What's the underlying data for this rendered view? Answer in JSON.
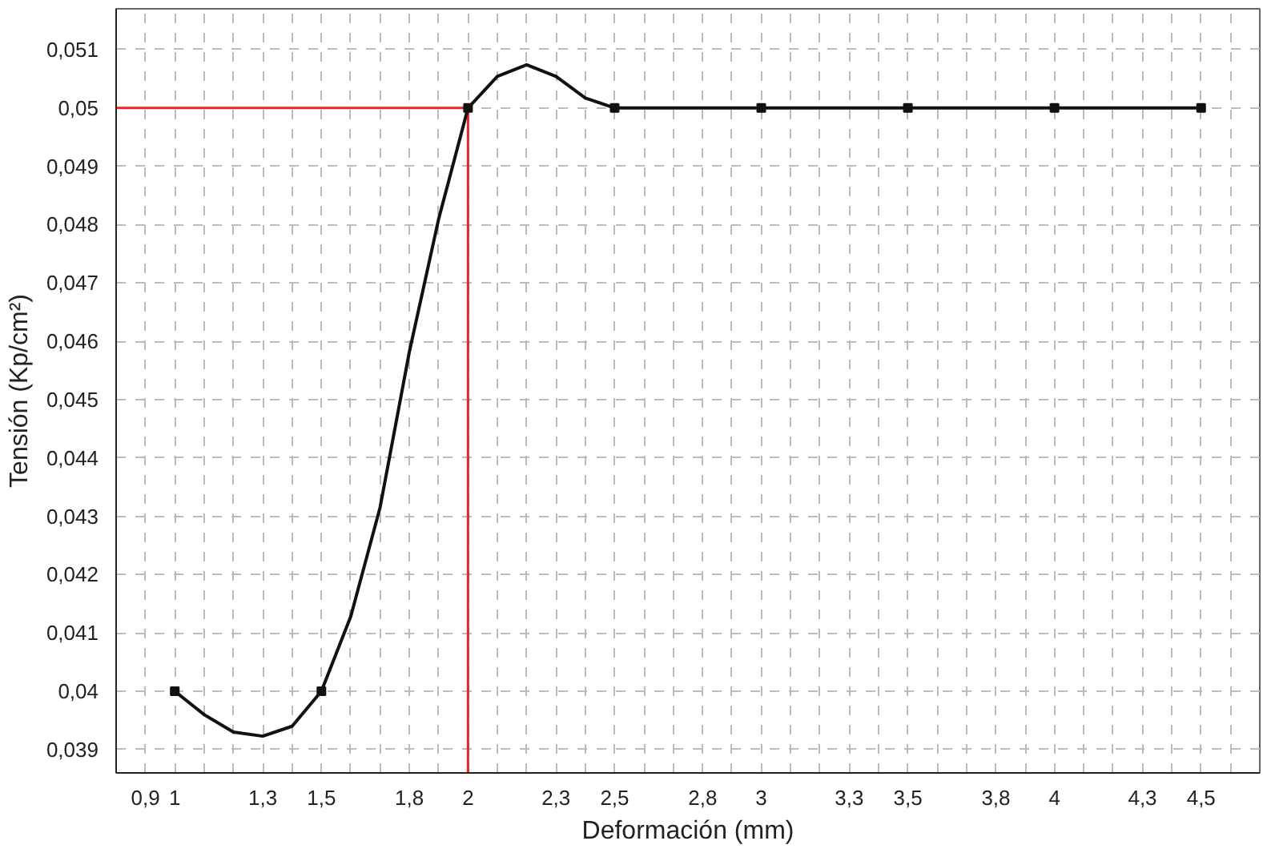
{
  "chart_data": {
    "type": "line",
    "xlabel": "Deformación (mm)",
    "ylabel": "Tensión (Kp/cm²)",
    "x": [
      1,
      1.5,
      2,
      2.5,
      3,
      3.5,
      4,
      4.5
    ],
    "series": [
      {
        "color": "#111111",
        "marker": "none",
        "x": [
          1,
          1.1,
          1.2,
          1.3,
          1.4,
          1.5,
          1.6,
          1.7,
          1.8,
          1.9,
          2,
          2.1,
          2.2,
          2.3,
          2.4,
          2.5,
          3,
          3.5,
          4,
          4.5
        ],
        "values": [
          0.04,
          0.0396,
          0.0393,
          0.03923,
          0.0394,
          0.04,
          0.04128,
          0.04315,
          0.04582,
          0.0481,
          0.05,
          0.05054,
          0.05074,
          0.05054,
          0.05017,
          0.05,
          0.05,
          0.05,
          0.05,
          0.05
        ]
      },
      {
        "type": "scatter",
        "color": "#111111",
        "values": [
          0.04,
          0.04,
          0.05,
          0.05,
          0.05,
          0.05,
          0.05,
          0.05
        ]
      }
    ],
    "xlim": [
      0.8,
      4.7
    ],
    "ylim": [
      0.0386,
      0.0517
    ],
    "xticks": [
      {
        "value": 0.9,
        "label": "0,9"
      },
      {
        "value": 1,
        "label": "1"
      },
      {
        "value": 1.3,
        "label": "1,3"
      },
      {
        "value": 1.5,
        "label": "1,5"
      },
      {
        "value": 1.8,
        "label": "1,8"
      },
      {
        "value": 2,
        "label": "2"
      },
      {
        "value": 2.3,
        "label": "2,3"
      },
      {
        "value": 2.5,
        "label": "2,5"
      },
      {
        "value": 2.8,
        "label": "2,8"
      },
      {
        "value": 3,
        "label": "3"
      },
      {
        "value": 3.3,
        "label": "3,3"
      },
      {
        "value": 3.5,
        "label": "3,5"
      },
      {
        "value": 3.8,
        "label": "3,8"
      },
      {
        "value": 4,
        "label": "4"
      },
      {
        "value": 4.3,
        "label": "4,3"
      },
      {
        "value": 4.5,
        "label": "4,5"
      }
    ],
    "yticks": [
      {
        "value": 0.039,
        "label": "0,039"
      },
      {
        "value": 0.04,
        "label": "0,04"
      },
      {
        "value": 0.041,
        "label": "0,041"
      },
      {
        "value": 0.042,
        "label": "0,042"
      },
      {
        "value": 0.043,
        "label": "0,043"
      },
      {
        "value": 0.044,
        "label": "0,044"
      },
      {
        "value": 0.045,
        "label": "0,045"
      },
      {
        "value": 0.046,
        "label": "0,046"
      },
      {
        "value": 0.047,
        "label": "0,047"
      },
      {
        "value": 0.048,
        "label": "0,048"
      },
      {
        "value": 0.049,
        "label": "0,049"
      },
      {
        "value": 0.05,
        "label": "0,05"
      },
      {
        "value": 0.051,
        "label": "0,051"
      }
    ],
    "ref_lines": [
      {
        "axis": "y",
        "value": 0.05,
        "color": "#e8262b"
      },
      {
        "axis": "x",
        "value": 2,
        "color": "#e8262b"
      }
    ],
    "grid": true,
    "marker": "square",
    "line_style": "solid"
  }
}
